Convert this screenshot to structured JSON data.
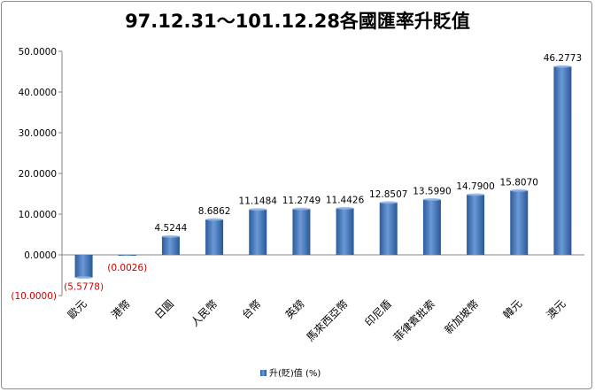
{
  "chart_data": {
    "type": "bar",
    "title": "97.12.31～101.12.28各國匯率升貶值",
    "categories": [
      "歐元",
      "港幣",
      "日圓",
      "人民幣",
      "台幣",
      "英鎊",
      "馬來西亞幣",
      "印尼盾",
      "菲律賓批索",
      "新加坡幣",
      "韓元",
      "澳元"
    ],
    "series": [
      {
        "name": "升(貶)值  (%)",
        "values": [
          -5.5778,
          -0.0026,
          4.5244,
          8.6862,
          11.1484,
          11.2749,
          11.4426,
          12.8507,
          13.599,
          14.79,
          15.807,
          46.2773
        ]
      }
    ],
    "data_labels": [
      "(5.5778)",
      "(0.0026)",
      "4.5244",
      "8.6862",
      "11.1484",
      "11.2749",
      "11.4426",
      "12.8507",
      "13.5990",
      "14.7900",
      "15.8070",
      "46.2773"
    ],
    "ylim": [
      -10,
      50
    ],
    "yticks": [
      -10,
      0,
      10,
      20,
      30,
      40,
      50
    ],
    "ytick_labels": [
      "(10.0000)",
      "0.0000",
      "10.0000",
      "20.0000",
      "30.0000",
      "40.0000",
      "50.0000"
    ],
    "grid": false,
    "legend_position": "bottom",
    "colors": {
      "bar": "#4a7ebb",
      "bar_light": "#7fa7dc",
      "bar_dark": "#1f4e8c",
      "negative_label": "#cc0000",
      "axis": "#868686"
    }
  }
}
